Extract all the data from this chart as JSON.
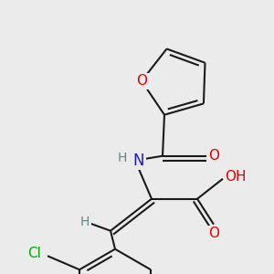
{
  "background_color": "#ebebeb",
  "bond_color": "#1a1a1a",
  "bond_width": 1.5,
  "atom_colors": {
    "O": "#e60000",
    "N": "#1a1acc",
    "Cl": "#00aa00",
    "H": "#5a8a8a",
    "C": "#1a1a1a"
  },
  "figsize": [
    3.0,
    3.0
  ],
  "dpi": 100
}
